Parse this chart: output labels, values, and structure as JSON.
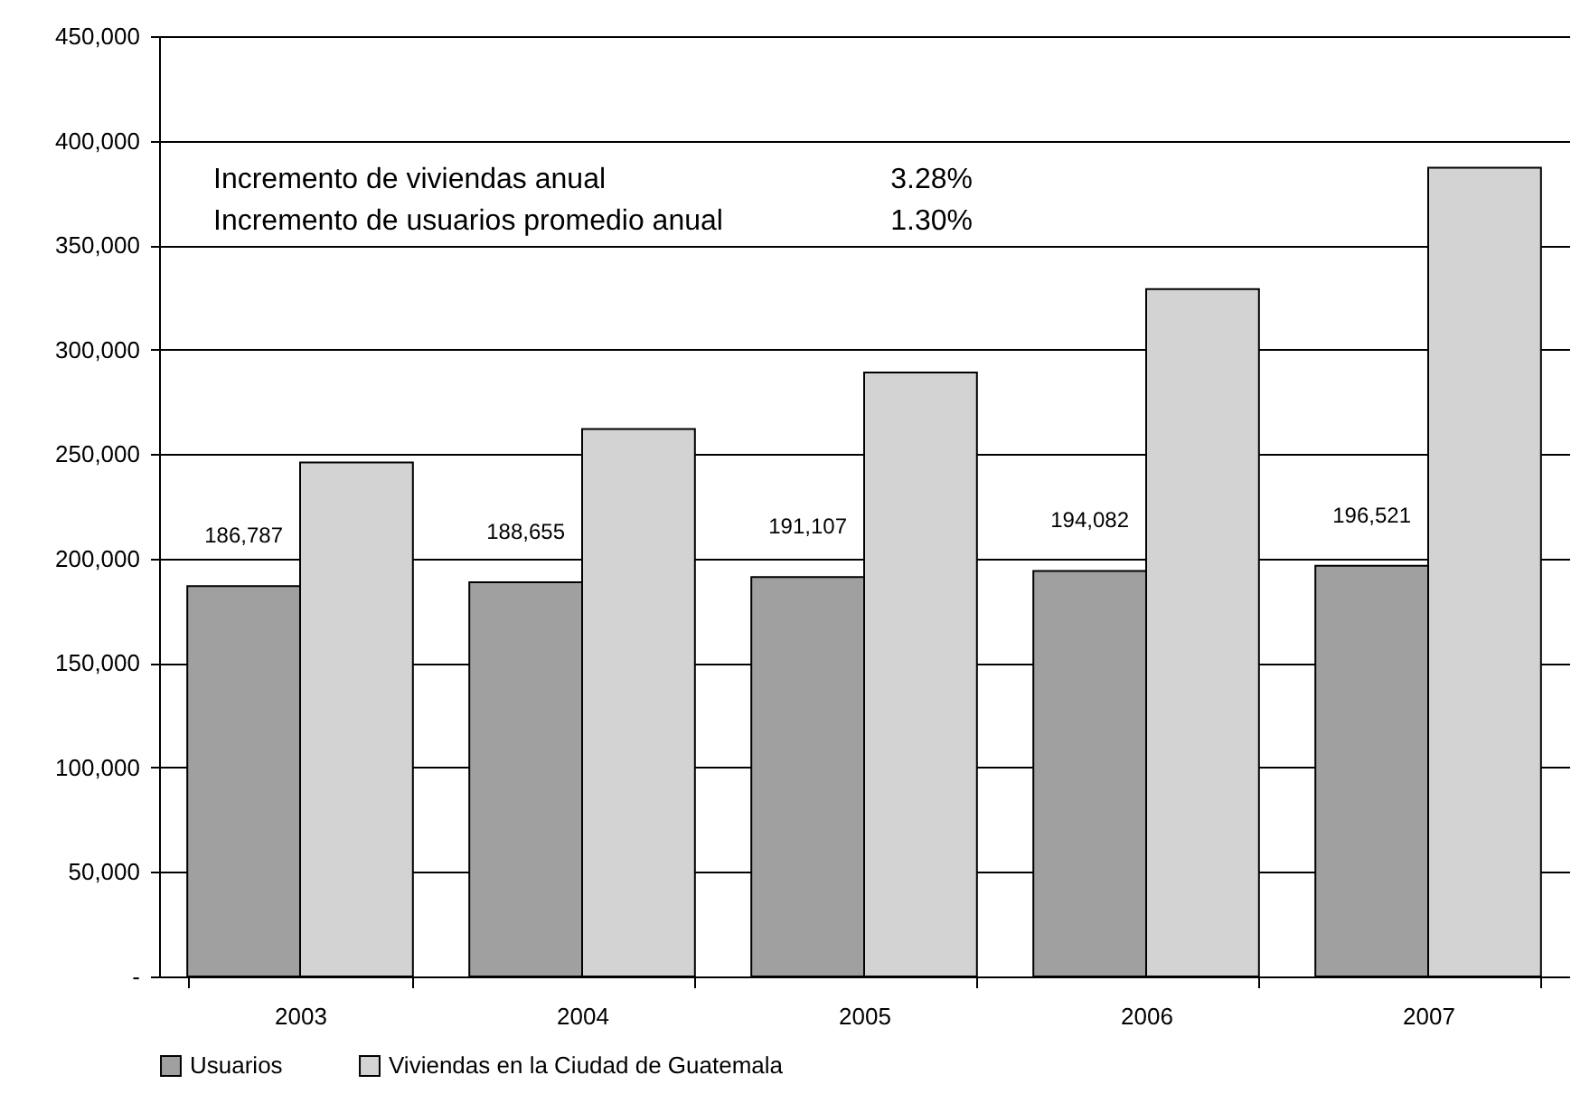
{
  "chart_data": {
    "type": "bar",
    "categories": [
      "2003",
      "2004",
      "2005",
      "2006",
      "2007"
    ],
    "series": [
      {
        "name": "Usuarios",
        "color": "#a0a0a0",
        "values": [
          186787,
          188655,
          191107,
          194082,
          196521
        ],
        "value_labels": [
          "186,787",
          "188,655",
          "191,107",
          "194,082",
          "196,521"
        ]
      },
      {
        "name": "Viviendas en la Ciudad de Guatemala",
        "color": "#d3d3d3",
        "values": [
          246000,
          262000,
          289000,
          329000,
          387000
        ]
      }
    ],
    "ylim": [
      0,
      450000
    ],
    "yticks": [
      {
        "value": 0,
        "label": "-"
      },
      {
        "value": 50000,
        "label": "50,000"
      },
      {
        "value": 100000,
        "label": "100,000"
      },
      {
        "value": 150000,
        "label": "150,000"
      },
      {
        "value": 200000,
        "label": "200,000"
      },
      {
        "value": 250000,
        "label": "250,000"
      },
      {
        "value": 300000,
        "label": "300,000"
      },
      {
        "value": 350000,
        "label": "350,000"
      },
      {
        "value": 400000,
        "label": "400,000"
      },
      {
        "value": 450000,
        "label": "450,000"
      }
    ],
    "grid": "y",
    "legend": "bottom",
    "annotations": [
      "Incremento de viviendas anual 3.28%",
      "Incremento de usuarios promedio anual 1.30%"
    ]
  }
}
